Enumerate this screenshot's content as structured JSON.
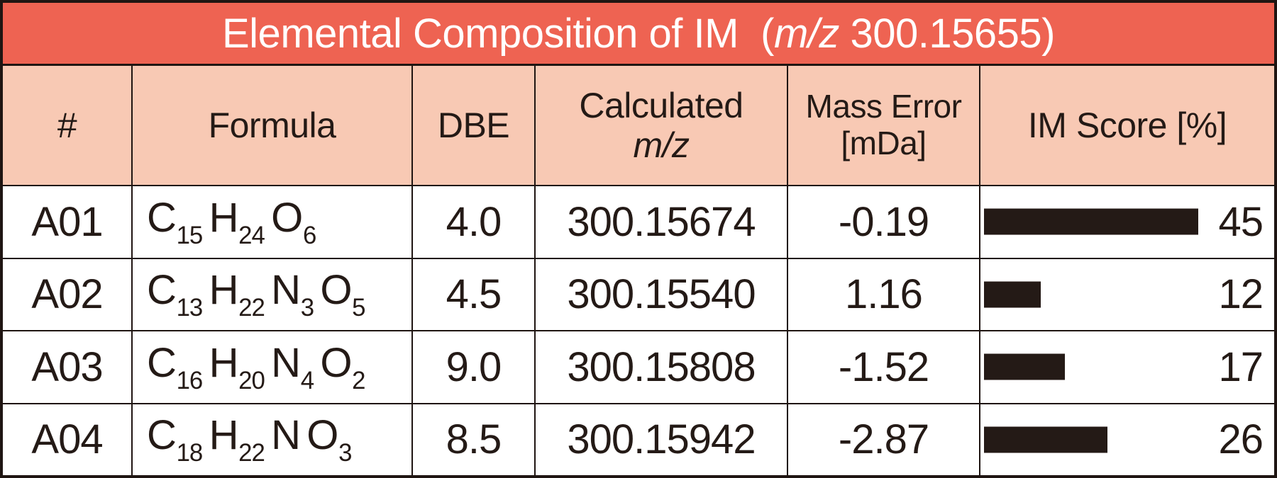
{
  "title": {
    "prefix": "Elemental Composition of IM  (",
    "italic": "m/z",
    "suffix": " 300.15655)"
  },
  "colors": {
    "title_bg": "#ee6352",
    "header_bg": "#f8c9b4",
    "ink": "#241a16",
    "border": "#1f1512"
  },
  "header": {
    "num": "#",
    "formula": "Formula",
    "dbe": "DBE",
    "calc_line1": "Calculated",
    "calc_italic": "m/z",
    "mass_line1": "Mass Error",
    "mass_line2": "[mDa]",
    "score": "IM Score [%]"
  },
  "rows": [
    {
      "id": "A01",
      "formula": [
        [
          "C",
          "15"
        ],
        [
          "H",
          "24"
        ],
        [
          "O",
          "6"
        ]
      ],
      "dbe": "4.0",
      "calc_mz": "300.15674",
      "mass_error": "-0.19",
      "score": 45
    },
    {
      "id": "A02",
      "formula": [
        [
          "C",
          "13"
        ],
        [
          "H",
          "22"
        ],
        [
          "N",
          "3"
        ],
        [
          "O",
          "5"
        ]
      ],
      "dbe": "4.5",
      "calc_mz": "300.15540",
      "mass_error": "1.16",
      "score": 12
    },
    {
      "id": "A03",
      "formula": [
        [
          "C",
          "16"
        ],
        [
          "H",
          "20"
        ],
        [
          "N",
          "4"
        ],
        [
          "O",
          "2"
        ]
      ],
      "dbe": "9.0",
      "calc_mz": "300.15808",
      "mass_error": "-1.52",
      "score": 17
    },
    {
      "id": "A04",
      "formula": [
        [
          "C",
          "18"
        ],
        [
          "H",
          "22"
        ],
        [
          "N",
          ""
        ],
        [
          "O",
          "3"
        ]
      ],
      "dbe": "8.5",
      "calc_mz": "300.15942",
      "mass_error": "-2.87",
      "score": 26
    }
  ],
  "chart_data": {
    "type": "table",
    "title": "Elemental Composition of IM (m/z 300.15655)",
    "columns": [
      "#",
      "Formula",
      "DBE",
      "Calculated m/z",
      "Mass Error [mDa]",
      "IM Score [%]"
    ],
    "rows": [
      [
        "A01",
        "C15 H24 O6",
        4.0,
        300.15674,
        -0.19,
        45
      ],
      [
        "A02",
        "C13 H22 N3 O5",
        4.5,
        300.1554,
        1.16,
        12
      ],
      [
        "A03",
        "C16 H20 N4 O2",
        9.0,
        300.15808,
        -1.52,
        17
      ],
      [
        "A04",
        "C18 H22 N O3",
        8.5,
        300.15942,
        -2.87,
        26
      ]
    ],
    "embedded_bar": {
      "column": "IM Score [%]",
      "values": [
        45,
        12,
        17,
        26
      ],
      "value_range": [
        0,
        100
      ],
      "bar_color": "#241a16",
      "orientation": "horizontal"
    }
  }
}
